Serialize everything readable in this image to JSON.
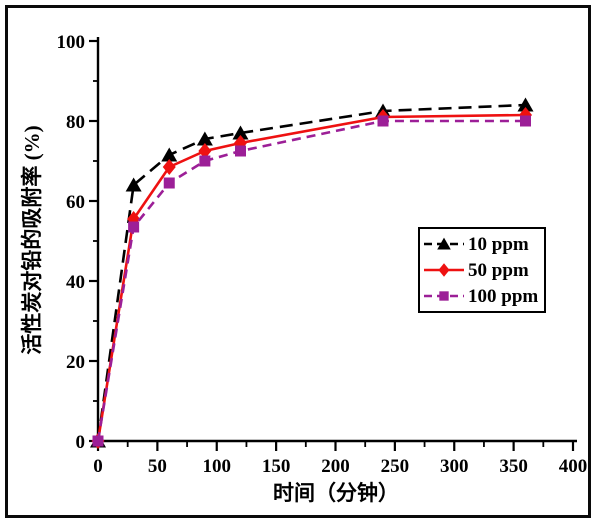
{
  "chart_data": {
    "type": "line",
    "title": "",
    "xlabel": "时间（分钟）",
    "ylabel": "活性炭对铅的吸附率 (%)",
    "x": [
      0,
      30,
      60,
      90,
      120,
      240,
      360
    ],
    "series": [
      {
        "name": "10 ppm",
        "color": "#000000",
        "marker": "triangle",
        "line_style": "dashed",
        "values": [
          0,
          64,
          71.5,
          75.5,
          77,
          82.5,
          84
        ]
      },
      {
        "name": "50 ppm",
        "color": "#ee1111",
        "marker": "diamond",
        "line_style": "solid",
        "values": [
          0,
          55.5,
          68.5,
          72.5,
          74.5,
          81,
          81.5
        ]
      },
      {
        "name": "100 ppm",
        "color": "#9c1f97",
        "marker": "square",
        "line_style": "dashed",
        "values": [
          0,
          53.5,
          64.5,
          70,
          72.5,
          80,
          80
        ]
      }
    ],
    "xlim": [
      0,
      400
    ],
    "ylim": [
      0,
      100
    ],
    "x_major_ticks": [
      0,
      50,
      100,
      150,
      200,
      250,
      300,
      350,
      400
    ],
    "y_major_ticks": [
      0,
      20,
      40,
      60,
      80,
      100
    ],
    "x_minor_step": 25,
    "y_minor_step": 10,
    "grid": false,
    "legend_position": "middle-right",
    "axis_color": "#000000",
    "frame_color": "#0a0a0a"
  }
}
